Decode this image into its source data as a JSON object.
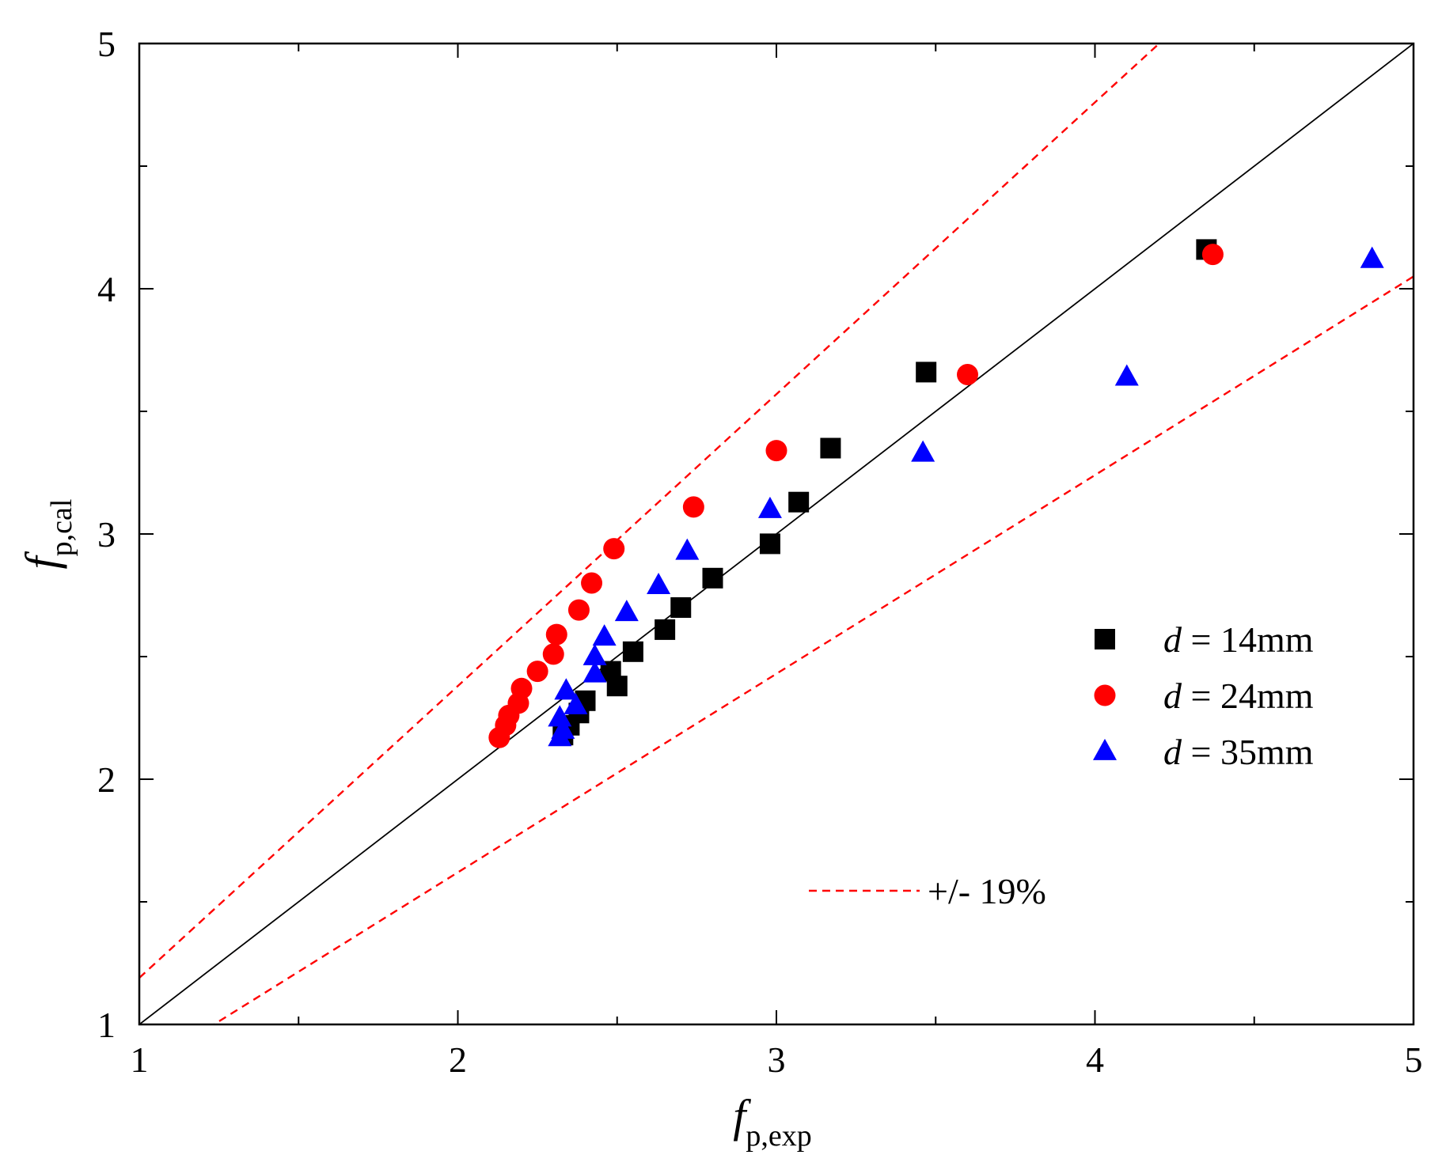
{
  "chart_data": {
    "type": "scatter",
    "title": "",
    "xlabel": {
      "main": "f",
      "sub": "p,exp"
    },
    "ylabel": {
      "main": "f",
      "sub": "p,cal"
    },
    "xlim": [
      1,
      5
    ],
    "ylim": [
      1,
      5
    ],
    "x_major_ticks": [
      1,
      2,
      3,
      4,
      5
    ],
    "y_major_ticks": [
      1,
      2,
      3,
      4,
      5
    ],
    "x_tick_labels": [
      "1",
      "2",
      "3",
      "4",
      "5"
    ],
    "y_tick_labels": [
      "1",
      "2",
      "3",
      "4",
      "5"
    ],
    "minor_tick_step": 0.5,
    "grid": false,
    "reference_lines": [
      {
        "name": "equality",
        "slope": 1.0,
        "style": "solid",
        "color": "#000000"
      },
      {
        "name": "upper-bound",
        "slope": 1.19,
        "style": "dashed",
        "color": "#ff0000"
      },
      {
        "name": "lower-bound",
        "slope": 0.81,
        "style": "dashed",
        "color": "#ff0000"
      }
    ],
    "band_label": "+/- 19%",
    "legend_position": "right-middle",
    "series": [
      {
        "name": "d = 14mm",
        "legend_var": "d",
        "legend_rest": " = 14mm",
        "marker": "square",
        "color": "#000000",
        "points": [
          [
            2.33,
            2.18
          ],
          [
            2.35,
            2.22
          ],
          [
            2.38,
            2.27
          ],
          [
            2.4,
            2.32
          ],
          [
            2.48,
            2.44
          ],
          [
            2.5,
            2.38
          ],
          [
            2.55,
            2.52
          ],
          [
            2.65,
            2.61
          ],
          [
            2.7,
            2.7
          ],
          [
            2.8,
            2.82
          ],
          [
            2.98,
            2.96
          ],
          [
            3.07,
            3.13
          ],
          [
            3.17,
            3.35
          ],
          [
            3.47,
            3.66
          ],
          [
            4.35,
            4.16
          ]
        ]
      },
      {
        "name": "d = 24mm",
        "legend_var": "d",
        "legend_rest": " = 24mm",
        "marker": "circle",
        "color": "#ff0000",
        "points": [
          [
            2.13,
            2.17
          ],
          [
            2.15,
            2.22
          ],
          [
            2.16,
            2.26
          ],
          [
            2.19,
            2.31
          ],
          [
            2.2,
            2.37
          ],
          [
            2.25,
            2.44
          ],
          [
            2.3,
            2.51
          ],
          [
            2.31,
            2.59
          ],
          [
            2.38,
            2.69
          ],
          [
            2.42,
            2.8
          ],
          [
            2.49,
            2.94
          ],
          [
            2.74,
            3.11
          ],
          [
            3.0,
            3.34
          ],
          [
            3.6,
            3.65
          ],
          [
            4.37,
            4.14
          ]
        ]
      },
      {
        "name": "d = 35mm",
        "legend_var": "d",
        "legend_rest": " = 35mm",
        "marker": "triangle",
        "color": "#0000ff",
        "points": [
          [
            2.32,
            2.17
          ],
          [
            2.33,
            2.2
          ],
          [
            2.32,
            2.25
          ],
          [
            2.37,
            2.3
          ],
          [
            2.34,
            2.36
          ],
          [
            2.43,
            2.43
          ],
          [
            2.43,
            2.5
          ],
          [
            2.46,
            2.58
          ],
          [
            2.53,
            2.68
          ],
          [
            2.63,
            2.79
          ],
          [
            2.72,
            2.93
          ],
          [
            2.98,
            3.1
          ],
          [
            3.46,
            3.33
          ],
          [
            4.1,
            3.64
          ],
          [
            4.87,
            4.12
          ]
        ]
      }
    ]
  }
}
